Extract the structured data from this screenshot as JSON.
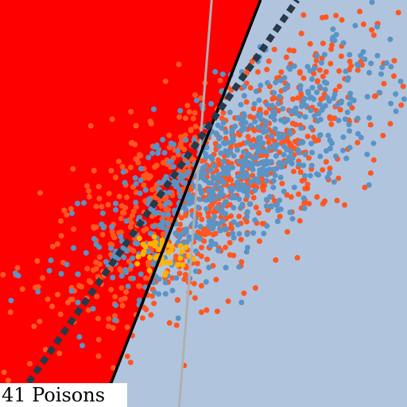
{
  "caption": "41 Poisons",
  "colors": {
    "region_left": "#ff0000",
    "region_right": "#b0c4de",
    "boundary_solid": "#000000",
    "boundary_dashed": "#263a4a",
    "reference_line": "#b0b0b0",
    "class_orange": "#ff5722",
    "class_blue": "#5b93c5",
    "poison": "#ffb300"
  },
  "chart_data": {
    "type": "scatter",
    "title": "",
    "xlabel": "",
    "ylabel": "",
    "xlim": [
      0,
      1
    ],
    "ylim": [
      0,
      1
    ],
    "grid": false,
    "legend": "none",
    "boundaries": [
      {
        "style": "solid",
        "points": [
          [
            0.25,
            0.0
          ],
          [
            0.64,
            1.0
          ]
        ]
      },
      {
        "style": "dashed",
        "points": [
          [
            0.07,
            0.06
          ],
          [
            0.73,
            1.0
          ]
        ]
      },
      {
        "style": "reference",
        "points": [
          [
            0.44,
            0.0
          ],
          [
            0.52,
            1.0
          ]
        ]
      }
    ],
    "series": [
      {
        "role": "orange",
        "count": 900,
        "center": [
          0.52,
          0.54
        ],
        "spread": [
          0.2,
          0.17
        ],
        "tilt": 0.75
      },
      {
        "role": "blue",
        "count": 700,
        "center": [
          0.58,
          0.58
        ],
        "spread": [
          0.18,
          0.14
        ],
        "tilt": 0.8
      },
      {
        "role": "poison",
        "count": 41,
        "center": [
          0.4,
          0.38
        ],
        "spread": [
          0.035,
          0.04
        ],
        "tilt": 0.0
      }
    ]
  }
}
